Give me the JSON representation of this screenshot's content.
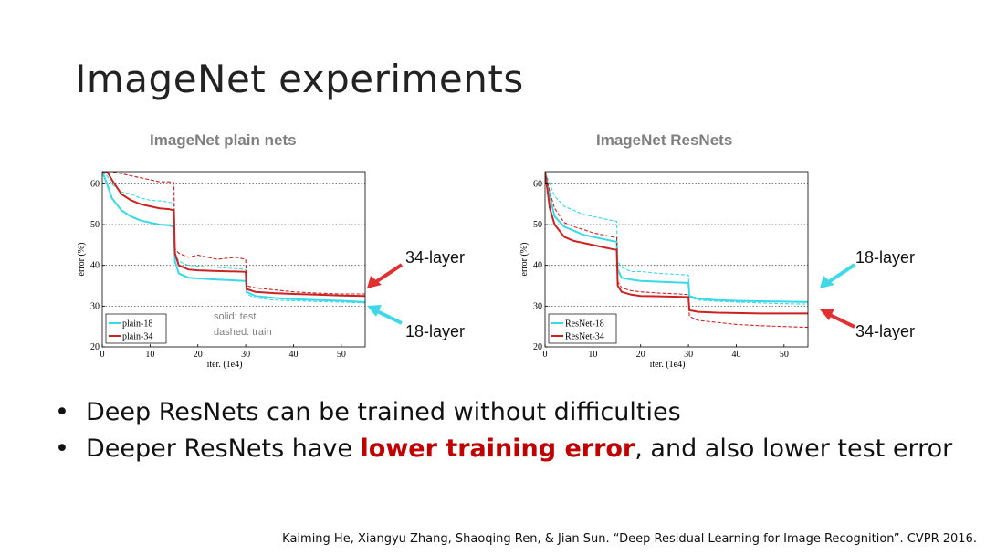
{
  "slide": {
    "title": "ImageNet experiments",
    "bullets": [
      {
        "prefix": "Deep ResNets can be trained without difficulties",
        "highlight": "",
        "suffix": ""
      },
      {
        "prefix": "Deeper ResNets have ",
        "highlight": "lower training error",
        "suffix": ", and also lower test error"
      }
    ],
    "citation": "Kaiming He, Xiangyu Zhang, Shaoqing Ren, & Jian Sun. “Deep Residual Learning for Image Recognition”. CVPR 2016."
  },
  "colors": {
    "cyan": "#39d9e8",
    "red": "#cc2222",
    "arrow_red": "#e03030",
    "arrow_cyan": "#3fd8e6",
    "highlight": "#c00000"
  },
  "annotations": {
    "plain_upper": "34-layer",
    "plain_lower": "18-layer",
    "resnet_upper": "18-layer",
    "resnet_lower": "34-layer",
    "note_solid": "solid: test",
    "note_dashed": "dashed: train"
  },
  "chart_data": [
    {
      "type": "line",
      "title": "ImageNet plain nets",
      "xlabel": "iter. (1e4)",
      "ylabel": "error (%)",
      "xlim": [
        0,
        55
      ],
      "ylim": [
        20,
        63
      ],
      "xticks": [
        0,
        10,
        20,
        30,
        40,
        50
      ],
      "yticks": [
        20,
        30,
        40,
        50,
        60
      ],
      "grid": "horizontal dotted",
      "legend": "bottom-left",
      "series": [
        {
          "name": "plain-18",
          "style": "solid",
          "color": "#39d9e8",
          "x": [
            0,
            1,
            2,
            4,
            6,
            8,
            10,
            12,
            14,
            15,
            15.2,
            16,
            18,
            20,
            24,
            28,
            30,
            30.2,
            32,
            36,
            40,
            45,
            50,
            55
          ],
          "y": [
            63,
            60,
            56.5,
            53.5,
            52,
            51,
            50.5,
            50,
            49.8,
            49.5,
            41,
            38,
            37,
            36.8,
            36.5,
            36.3,
            36.2,
            33.5,
            32.5,
            32,
            31.7,
            31.5,
            31.3,
            31
          ]
        },
        {
          "name": "plain-18 train",
          "style": "dashed",
          "color": "#39d9e8",
          "x": [
            0,
            1,
            2,
            4,
            6,
            8,
            10,
            12,
            14,
            15,
            15.2,
            16,
            18,
            20,
            24,
            28,
            30,
            30.2,
            32,
            36,
            40,
            45,
            50,
            55
          ],
          "y": [
            63,
            62,
            60,
            58,
            57.5,
            56.5,
            56,
            55.8,
            55.5,
            55.2,
            43,
            41,
            40,
            39.8,
            39.5,
            39.2,
            39,
            33,
            32,
            31.5,
            31.3,
            31.1,
            31,
            30.8
          ]
        },
        {
          "name": "plain-34",
          "style": "solid",
          "color": "#cc2222",
          "x": [
            0,
            1,
            2,
            4,
            6,
            8,
            10,
            12,
            14,
            15,
            15.2,
            16,
            18,
            20,
            24,
            28,
            30,
            30.2,
            32,
            36,
            40,
            45,
            50,
            55
          ],
          "y": [
            63,
            63,
            61,
            57.5,
            56,
            55,
            54.5,
            54,
            53.8,
            53.5,
            43,
            40,
            39,
            38.8,
            38.6,
            38.5,
            38.4,
            34.2,
            33.5,
            33.2,
            33,
            32.8,
            32.6,
            32.5
          ]
        },
        {
          "name": "plain-34 train",
          "style": "dashed",
          "color": "#cc2222",
          "x": [
            0,
            1,
            2,
            4,
            6,
            8,
            10,
            12,
            14,
            15,
            15.2,
            16,
            18,
            20,
            24,
            28,
            30,
            30.2,
            32,
            36,
            40,
            45,
            50,
            55
          ],
          "y": [
            63,
            63,
            63,
            62.5,
            62,
            61.5,
            61,
            60.5,
            60.5,
            60.3,
            44,
            43,
            42,
            42.5,
            41.5,
            42,
            41.5,
            35,
            34.5,
            34,
            33.5,
            33.2,
            33,
            33
          ]
        }
      ]
    },
    {
      "type": "line",
      "title": "ImageNet ResNets",
      "xlabel": "iter. (1e4)",
      "ylabel": "error (%)",
      "xlim": [
        0,
        55
      ],
      "ylim": [
        20,
        63
      ],
      "xticks": [
        0,
        10,
        20,
        30,
        40,
        50
      ],
      "yticks": [
        20,
        30,
        40,
        50,
        60
      ],
      "grid": "horizontal dotted",
      "legend": "bottom-left",
      "series": [
        {
          "name": "ResNet-18",
          "style": "solid",
          "color": "#39d9e8",
          "x": [
            0,
            1,
            2,
            4,
            6,
            8,
            10,
            12,
            14,
            15,
            15.2,
            16,
            18,
            20,
            24,
            28,
            30,
            30.2,
            32,
            36,
            40,
            45,
            50,
            55
          ],
          "y": [
            63,
            57,
            52,
            49.5,
            48.5,
            47.5,
            47,
            46.5,
            46,
            45.8,
            39,
            37,
            36.5,
            36.2,
            36,
            35.8,
            35.7,
            32.5,
            31.8,
            31.5,
            31.3,
            31.2,
            31.1,
            31
          ]
        },
        {
          "name": "ResNet-18 train",
          "style": "dashed",
          "color": "#39d9e8",
          "x": [
            0,
            1,
            2,
            4,
            6,
            8,
            10,
            12,
            14,
            15,
            15.2,
            16,
            18,
            20,
            24,
            28,
            30,
            30.2,
            32,
            36,
            40,
            45,
            50,
            55
          ],
          "y": [
            63,
            60,
            57,
            54.5,
            53.5,
            52.5,
            52,
            51.5,
            51,
            50.8,
            41,
            39.5,
            38.5,
            38.5,
            38,
            37.8,
            37.6,
            32.2,
            31.5,
            31.2,
            31,
            30.8,
            30.6,
            30.5
          ]
        },
        {
          "name": "ResNet-34",
          "style": "solid",
          "color": "#cc2222",
          "x": [
            0,
            1,
            2,
            4,
            6,
            8,
            10,
            12,
            14,
            15,
            15.2,
            16,
            18,
            20,
            24,
            28,
            30,
            30.2,
            32,
            36,
            40,
            45,
            50,
            55
          ],
          "y": [
            63,
            54,
            50,
            47,
            46,
            45.5,
            45,
            44.5,
            44,
            43.8,
            35,
            33.5,
            32.8,
            32.5,
            32.4,
            32.3,
            32.2,
            29,
            28.6,
            28.4,
            28.3,
            28.2,
            28.2,
            28.2
          ]
        },
        {
          "name": "ResNet-34 train",
          "style": "dashed",
          "color": "#cc2222",
          "x": [
            0,
            1,
            2,
            4,
            6,
            8,
            10,
            12,
            14,
            15,
            15.2,
            16,
            18,
            20,
            24,
            28,
            30,
            30.2,
            32,
            36,
            40,
            45,
            50,
            55
          ],
          "y": [
            63,
            58,
            54,
            50.5,
            49.5,
            48.8,
            48,
            47.5,
            47,
            46.8,
            36,
            34.5,
            33.8,
            33.5,
            33.2,
            33,
            32.8,
            27.5,
            26.5,
            26,
            25.5,
            25.2,
            25,
            24.8
          ]
        }
      ]
    }
  ]
}
